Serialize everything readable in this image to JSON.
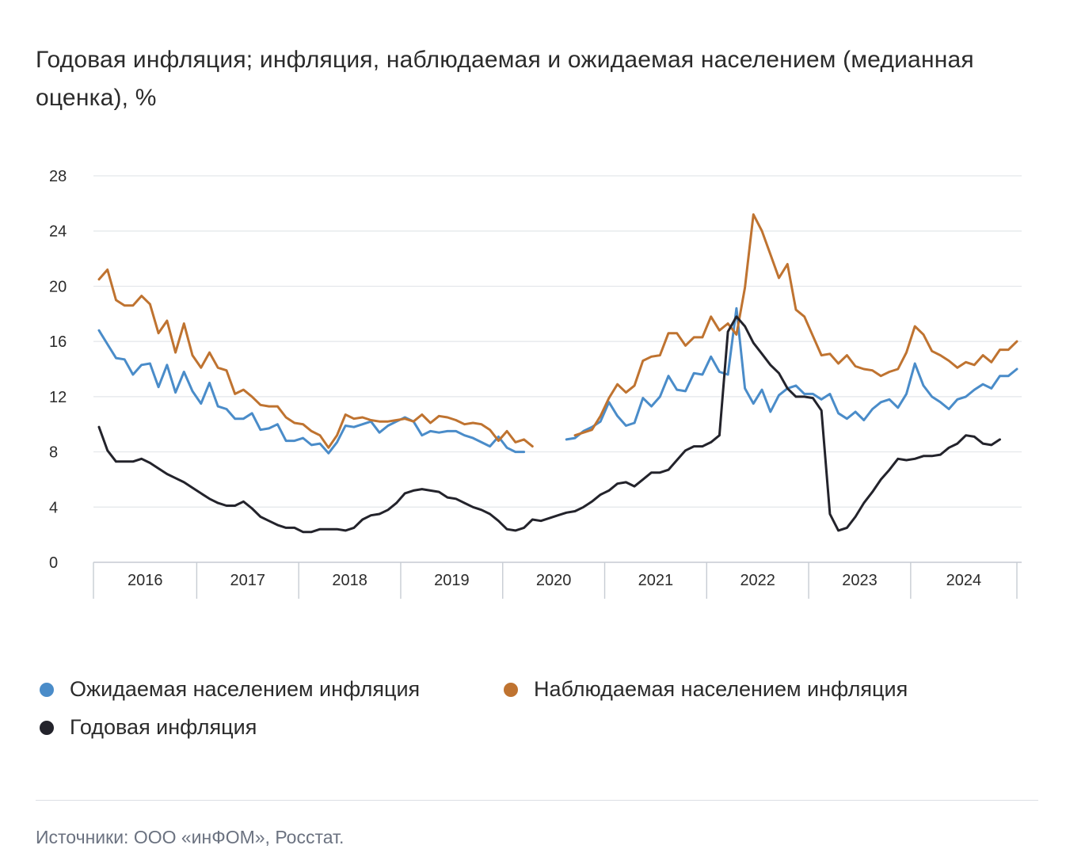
{
  "title": "Годовая инфляция; инфляция, наблюдаемая и ожидаемая населением (медианная оценка), %",
  "source": "Источники: ООО «инФОМ», Росстат.",
  "legend": {
    "expected": "Ожидаемая населением инфляция",
    "observed": "Наблюдаемая населением инфляция",
    "annual": "Годовая инфляция"
  },
  "colors": {
    "expected": "#4a8cc9",
    "observed": "#bf7330",
    "annual": "#23232b",
    "grid": "#e3e6ea",
    "axis": "#c7ccd3"
  },
  "chart_data": {
    "type": "line",
    "ylim": [
      0,
      28
    ],
    "yticks": [
      0,
      4,
      8,
      12,
      16,
      20,
      24,
      28
    ],
    "xlabel": "",
    "ylabel": "",
    "grid": true,
    "legend_position": "bottom",
    "x_start": "2016-01",
    "x_end": "2024-12",
    "year_labels": [
      "2016",
      "2017",
      "2018",
      "2019",
      "2020",
      "2021",
      "2022",
      "2023",
      "2024"
    ],
    "series": [
      {
        "name": "Ожидаемая населением инфляция",
        "key": "expected",
        "values": [
          16.8,
          15.8,
          14.8,
          14.7,
          13.6,
          14.3,
          14.4,
          12.7,
          14.3,
          12.3,
          13.8,
          12.4,
          11.5,
          13.0,
          11.3,
          11.1,
          10.4,
          10.4,
          10.8,
          9.6,
          9.7,
          10.0,
          8.8,
          8.8,
          9.0,
          8.5,
          8.6,
          7.9,
          8.7,
          9.9,
          9.8,
          10.0,
          10.2,
          9.4,
          9.9,
          10.2,
          10.5,
          10.2,
          9.2,
          9.5,
          9.4,
          9.5,
          9.5,
          9.2,
          9.0,
          8.7,
          8.4,
          9.1,
          8.3,
          8.0,
          8.0,
          null,
          null,
          null,
          null,
          8.9,
          9.0,
          9.5,
          9.8,
          10.2,
          11.6,
          10.6,
          9.9,
          10.1,
          11.9,
          11.3,
          12.0,
          13.5,
          12.5,
          12.4,
          13.7,
          13.6,
          14.9,
          13.8,
          13.6,
          18.4,
          12.6,
          11.5,
          12.5,
          10.9,
          12.1,
          12.6,
          12.8,
          12.2,
          12.2,
          11.8,
          12.2,
          10.8,
          10.4,
          10.9,
          10.3,
          11.1,
          11.6,
          11.8,
          11.2,
          12.2,
          14.4,
          12.8,
          12.0,
          11.6,
          11.1,
          11.8,
          12.0,
          12.5,
          12.9,
          12.6,
          13.5,
          13.5,
          14.0
        ]
      },
      {
        "name": "Наблюдаемая населением инфляция",
        "key": "observed",
        "values": [
          20.5,
          21.2,
          19.0,
          18.6,
          18.6,
          19.3,
          18.7,
          16.6,
          17.5,
          15.2,
          17.3,
          15.0,
          14.1,
          15.2,
          14.1,
          13.9,
          12.2,
          12.5,
          12.0,
          11.4,
          11.3,
          11.3,
          10.5,
          10.1,
          10.0,
          9.5,
          9.2,
          8.3,
          9.2,
          10.7,
          10.4,
          10.5,
          10.3,
          10.2,
          10.2,
          10.3,
          10.4,
          10.2,
          10.7,
          10.1,
          10.6,
          10.5,
          10.3,
          10.0,
          10.1,
          10.0,
          9.6,
          8.8,
          9.5,
          8.7,
          8.9,
          8.4,
          null,
          null,
          null,
          null,
          9.2,
          9.4,
          9.6,
          10.6,
          11.9,
          12.9,
          12.3,
          12.8,
          14.6,
          14.9,
          15.0,
          16.6,
          16.6,
          15.7,
          16.3,
          16.3,
          17.8,
          16.8,
          17.3,
          16.5,
          19.9,
          25.2,
          24.0,
          22.3,
          20.6,
          21.6,
          18.3,
          17.8,
          16.4,
          15.0,
          15.1,
          14.4,
          15.0,
          14.2,
          14.0,
          13.9,
          13.5,
          13.8,
          14.0,
          15.2,
          17.1,
          16.5,
          15.3,
          15.0,
          14.6,
          14.1,
          14.5,
          14.3,
          15.0,
          14.5,
          15.4,
          15.4,
          16.0
        ]
      },
      {
        "name": "Годовая инфляция",
        "key": "annual",
        "values": [
          9.8,
          8.1,
          7.3,
          7.3,
          7.3,
          7.5,
          7.2,
          6.8,
          6.4,
          6.1,
          5.8,
          5.4,
          5.0,
          4.6,
          4.3,
          4.1,
          4.1,
          4.4,
          3.9,
          3.3,
          3.0,
          2.7,
          2.5,
          2.5,
          2.2,
          2.2,
          2.4,
          2.4,
          2.4,
          2.3,
          2.5,
          3.1,
          3.4,
          3.5,
          3.8,
          4.3,
          5.0,
          5.2,
          5.3,
          5.2,
          5.1,
          4.7,
          4.6,
          4.3,
          4.0,
          3.8,
          3.5,
          3.0,
          2.4,
          2.3,
          2.5,
          3.1,
          3.0,
          3.2,
          3.4,
          3.6,
          3.7,
          4.0,
          4.4,
          4.9,
          5.2,
          5.7,
          5.8,
          5.5,
          6.0,
          6.5,
          6.5,
          6.7,
          7.4,
          8.1,
          8.4,
          8.4,
          8.7,
          9.2,
          16.7,
          17.8,
          17.1,
          15.9,
          15.1,
          14.3,
          13.7,
          12.6,
          12.0,
          12.0,
          11.9,
          11.0,
          3.5,
          2.3,
          2.5,
          3.3,
          4.3,
          5.1,
          6.0,
          6.7,
          7.5,
          7.4,
          7.5,
          7.7,
          7.7,
          7.8,
          8.3,
          8.6,
          9.2,
          9.1,
          8.6,
          8.5,
          8.9
        ]
      }
    ]
  }
}
